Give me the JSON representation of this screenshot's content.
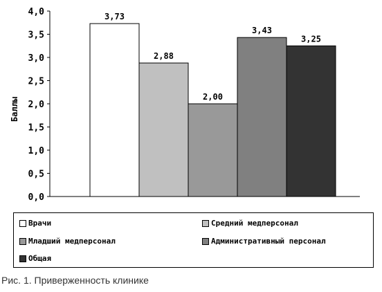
{
  "chart_data": {
    "type": "bar",
    "categories": [
      "Врачи",
      "Средний медперсонал",
      "Младший медперсонал",
      "Административный персонал",
      "Общая"
    ],
    "values": [
      3.73,
      2.88,
      2.0,
      3.43,
      3.25
    ],
    "value_labels": [
      "3,73",
      "2,88",
      "2,00",
      "3,43",
      "3,25"
    ],
    "colors": [
      "#ffffff",
      "#c0c0c0",
      "#999999",
      "#808080",
      "#333333"
    ],
    "ylabel": "Баллы",
    "ylim": [
      0,
      4
    ],
    "yticks": [
      "0,0",
      "0,5",
      "1,0",
      "1,5",
      "2,0",
      "2,5",
      "3,0",
      "3,5",
      "4,0"
    ],
    "grid": false,
    "legend": {
      "placement": "bottom",
      "entries": [
        "Врачи",
        "Средний медперсонал",
        "Младший медперсонал",
        "Административный персонал",
        "Общая"
      ]
    }
  },
  "caption": "Рис. 1. Приверженность клинике"
}
